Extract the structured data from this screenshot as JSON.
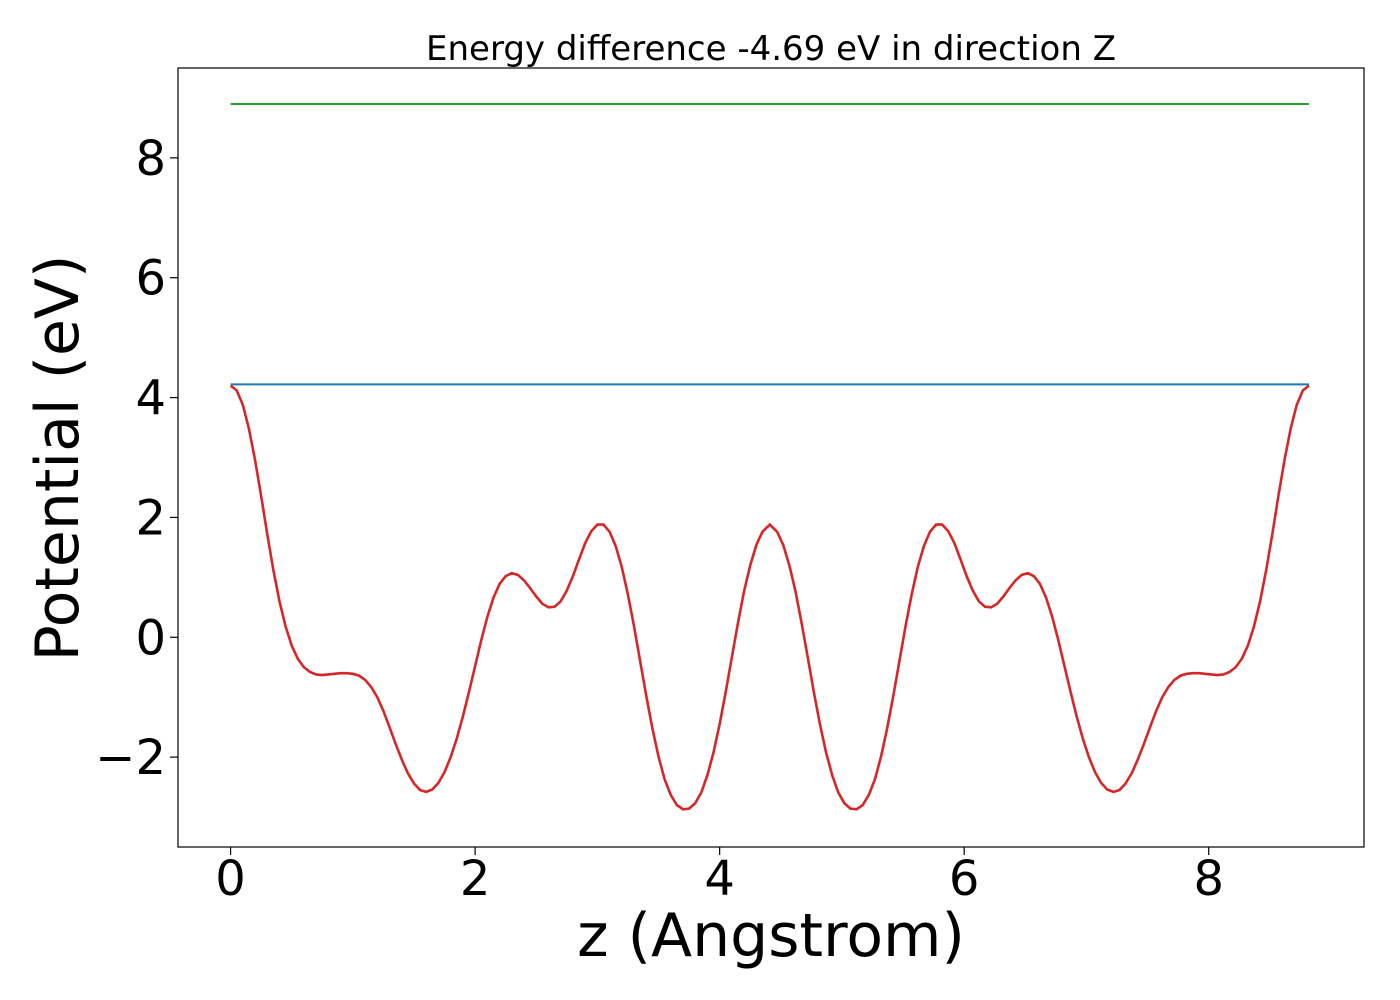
{
  "chart_data": {
    "type": "line",
    "title": "Energy difference -4.69 eV in direction Z",
    "xlabel": "z (Angstrom)",
    "ylabel": "Potential (eV)",
    "xlim": [
      -0.43,
      9.27
    ],
    "ylim": [
      -3.5,
      9.5
    ],
    "xticks": [
      0,
      2,
      4,
      6,
      8
    ],
    "xtick_labels": [
      "0",
      "2",
      "4",
      "6",
      "8"
    ],
    "yticks": [
      -2,
      0,
      2,
      4,
      6,
      8
    ],
    "ytick_labels": [
      "−2",
      "0",
      "2",
      "4",
      "6",
      "8"
    ],
    "grid": false,
    "series": [
      {
        "color": "#2ca02c",
        "x": [
          0,
          8.82
        ],
        "y": [
          8.9,
          8.9
        ]
      },
      {
        "color": "#1f77b4",
        "x": [
          0,
          8.82
        ],
        "y": [
          4.22,
          4.22
        ]
      },
      {
        "color": "#d62728",
        "x": [
          0,
          0.05,
          0.1,
          0.15,
          0.2,
          0.25,
          0.3,
          0.35,
          0.4,
          0.45,
          0.5,
          0.55,
          0.6,
          0.65,
          0.7,
          0.75,
          0.8,
          0.85,
          0.9,
          0.95,
          1.0,
          1.05,
          1.1,
          1.15,
          1.2,
          1.25,
          1.3,
          1.35,
          1.4,
          1.45,
          1.5,
          1.55,
          1.6,
          1.65,
          1.7,
          1.75,
          1.8,
          1.85,
          1.9,
          1.95,
          2.0,
          2.05,
          2.1,
          2.15,
          2.2,
          2.25,
          2.3,
          2.35,
          2.4,
          2.45,
          2.5,
          2.55,
          2.6,
          2.65,
          2.7,
          2.75,
          2.8,
          2.85,
          2.9,
          2.95,
          3.0,
          3.05,
          3.1,
          3.15,
          3.2,
          3.25,
          3.3,
          3.35,
          3.4,
          3.45,
          3.5,
          3.55,
          3.6,
          3.65,
          3.7,
          3.75,
          3.8,
          3.85,
          3.9,
          3.95,
          4.0,
          4.05,
          4.1,
          4.15,
          4.2,
          4.25,
          4.3,
          4.35,
          4.41
        ],
        "y": [
          4.2,
          4.12,
          3.88,
          3.48,
          2.96,
          2.36,
          1.72,
          1.12,
          0.6,
          0.18,
          -0.14,
          -0.36,
          -0.5,
          -0.58,
          -0.62,
          -0.63,
          -0.62,
          -0.61,
          -0.6,
          -0.6,
          -0.61,
          -0.64,
          -0.71,
          -0.83,
          -1.0,
          -1.23,
          -1.5,
          -1.78,
          -2.04,
          -2.27,
          -2.44,
          -2.55,
          -2.58,
          -2.54,
          -2.43,
          -2.25,
          -2.0,
          -1.69,
          -1.32,
          -0.91,
          -0.48,
          -0.05,
          0.34,
          0.66,
          0.89,
          1.02,
          1.07,
          1.04,
          0.95,
          0.82,
          0.68,
          0.56,
          0.5,
          0.51,
          0.6,
          0.78,
          1.02,
          1.3,
          1.57,
          1.77,
          1.88,
          1.88,
          1.76,
          1.52,
          1.17,
          0.71,
          0.18,
          -0.4,
          -0.98,
          -1.52,
          -1.99,
          -2.37,
          -2.63,
          -2.8,
          -2.87,
          -2.86,
          -2.77,
          -2.59,
          -2.3,
          -1.92,
          -1.45,
          -0.91,
          -0.33,
          0.24,
          0.77,
          1.2,
          1.54,
          1.76,
          1.88
        ]
      }
    ]
  }
}
